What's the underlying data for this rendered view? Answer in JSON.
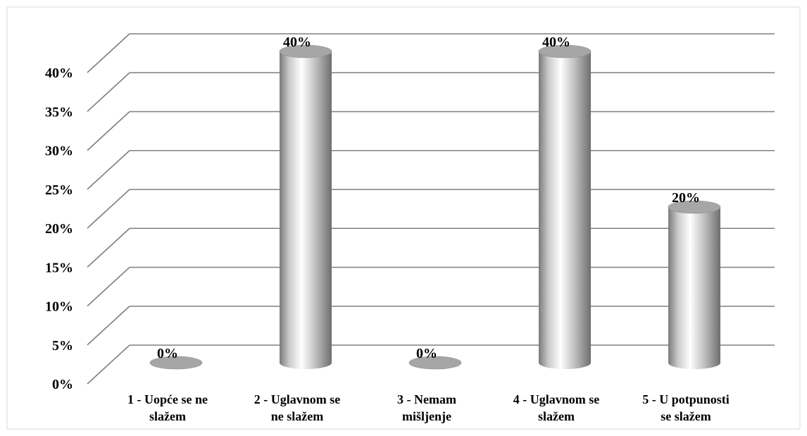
{
  "chart_data": {
    "type": "bar",
    "style": "3d-cylinder",
    "categories": [
      [
        "1 - Uopće se ne",
        "slažem"
      ],
      [
        "2 - Uglavnom se",
        "ne slažem"
      ],
      [
        "3 - Nemam",
        "mišljenje"
      ],
      [
        "4 - Uglavnom se",
        "slažem"
      ],
      [
        "5 - U potpunosti",
        "se slažem"
      ]
    ],
    "values": [
      0,
      40,
      0,
      40,
      20
    ],
    "data_labels": [
      "0%",
      "40%",
      "0%",
      "40%",
      "20%"
    ],
    "ylim": [
      0,
      40
    ],
    "y_ticks": [
      "0%",
      "5%",
      "10%",
      "15%",
      "20%",
      "25%",
      "30%",
      "35%",
      "40%"
    ],
    "y_tick_values": [
      0,
      5,
      10,
      15,
      20,
      25,
      30,
      35,
      40
    ],
    "grid": true,
    "legend": false,
    "colors": {
      "grid": "#7f7f7f",
      "bar_light": "#ffffff",
      "bar_mid": "#c8c8c8",
      "bar_dark": "#6e6e6e",
      "bar_top": "#a6a6a6",
      "frame": "#d9d9d9"
    }
  }
}
